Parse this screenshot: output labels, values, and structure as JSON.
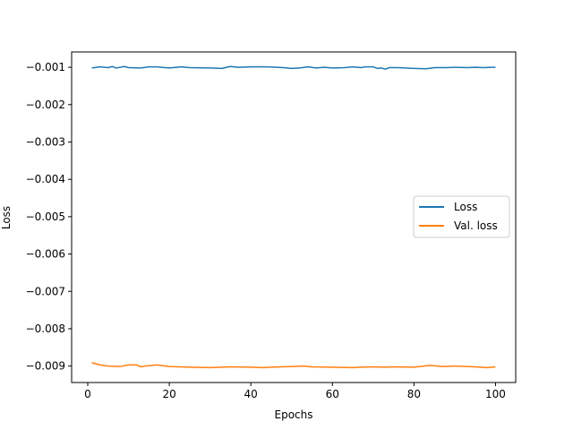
{
  "chart_data": {
    "type": "line",
    "title": "",
    "xlabel": "Epochs",
    "ylabel": "Loss",
    "xlim": [
      -3.95,
      104.95
    ],
    "ylim": [
      -0.00944,
      -0.00059
    ],
    "xticks": [
      0,
      20,
      40,
      60,
      80,
      100
    ],
    "xtick_labels": [
      "0",
      "20",
      "40",
      "60",
      "80",
      "100"
    ],
    "yticks": [
      -0.009,
      -0.008,
      -0.007,
      -0.006,
      -0.005,
      -0.004,
      -0.003,
      -0.002,
      -0.001
    ],
    "ytick_labels": [
      "−0.009",
      "−0.008",
      "−0.007",
      "−0.006",
      "−0.005",
      "−0.004",
      "−0.003",
      "−0.002",
      "−0.001"
    ],
    "grid": false,
    "legend": {
      "position": "center-right"
    },
    "series": [
      {
        "name": "Loss",
        "color": "#1f77b4",
        "x": [
          1,
          3,
          5,
          6,
          7,
          9,
          10,
          13,
          15,
          17,
          18,
          20,
          23,
          25,
          30,
          33,
          34,
          35,
          37,
          40,
          44,
          48,
          50,
          52,
          54,
          56,
          58,
          60,
          63,
          65,
          67,
          68,
          70,
          71,
          72,
          73,
          74,
          76,
          80,
          83,
          85,
          88,
          90,
          93,
          95,
          97,
          99,
          100
        ],
        "y": [
          -0.00102,
          -0.00099,
          -0.00101,
          -0.00098,
          -0.00102,
          -0.00098,
          -0.00101,
          -0.00102,
          -0.00099,
          -0.00099,
          -0.001,
          -0.00102,
          -0.00099,
          -0.00101,
          -0.00102,
          -0.00103,
          -0.001,
          -0.00098,
          -0.001,
          -0.00099,
          -0.00099,
          -0.00101,
          -0.00103,
          -0.00102,
          -0.00099,
          -0.00102,
          -0.001,
          -0.00102,
          -0.00101,
          -0.00099,
          -0.00101,
          -0.00099,
          -0.00099,
          -0.00103,
          -0.00102,
          -0.00105,
          -0.00101,
          -0.00101,
          -0.00103,
          -0.00104,
          -0.00101,
          -0.00101,
          -0.001,
          -0.00101,
          -0.001,
          -0.00101,
          -0.001,
          -0.001
        ]
      },
      {
        "name": "Val. loss",
        "color": "#ff7f0e",
        "x": [
          1,
          3,
          5,
          8,
          10,
          12,
          13,
          14,
          17,
          20,
          25,
          30,
          35,
          40,
          43,
          45,
          50,
          53,
          55,
          60,
          65,
          67,
          70,
          73,
          75,
          80,
          84,
          87,
          90,
          93,
          95,
          98,
          100
        ],
        "y": [
          -0.00891,
          -0.00897,
          -0.009,
          -0.00901,
          -0.00897,
          -0.00897,
          -0.00902,
          -0.009,
          -0.00897,
          -0.00901,
          -0.00903,
          -0.00904,
          -0.00902,
          -0.00903,
          -0.00904,
          -0.00903,
          -0.00901,
          -0.009,
          -0.00902,
          -0.00903,
          -0.00904,
          -0.00903,
          -0.00902,
          -0.00903,
          -0.00902,
          -0.00903,
          -0.00898,
          -0.00901,
          -0.009,
          -0.00901,
          -0.00902,
          -0.00904,
          -0.00902
        ]
      }
    ]
  }
}
